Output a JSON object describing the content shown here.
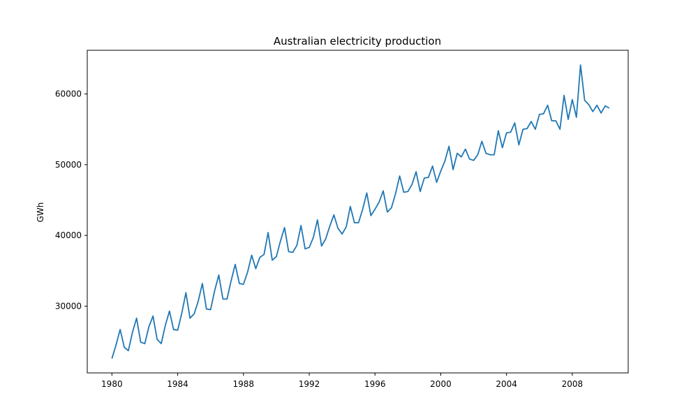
{
  "chart_data": {
    "type": "line",
    "title": "Australian electricity production",
    "xlabel": "",
    "ylabel": "GWh",
    "xlim": [
      1978.5,
      2011.4
    ],
    "ylim": [
      20560,
      66170
    ],
    "x_ticks": [
      1980,
      1984,
      1988,
      1992,
      1996,
      2000,
      2004,
      2008
    ],
    "y_ticks": [
      30000,
      40000,
      50000,
      60000
    ],
    "grid": false,
    "legend": "none",
    "colors": {
      "line": "#1f77b4"
    },
    "x_start": 1980.0,
    "x_step": 0.25,
    "series": [
      {
        "values": [
          22600,
          24500,
          26700,
          24200,
          23700,
          26300,
          28300,
          24900,
          24700,
          27100,
          28600,
          25300,
          24700,
          27300,
          29300,
          26700,
          26600,
          29000,
          31900,
          28300,
          28900,
          30700,
          33200,
          29600,
          29500,
          32200,
          34400,
          31000,
          31000,
          33600,
          35900,
          33200,
          33100,
          34800,
          37200,
          35300,
          36900,
          37300,
          40400,
          36500,
          37000,
          39200,
          41100,
          37700,
          37600,
          38600,
          41400,
          38100,
          38300,
          39700,
          42200,
          38500,
          39500,
          41300,
          42900,
          41000,
          40200,
          41200,
          44100,
          41800,
          41800,
          43700,
          46000,
          42800,
          43700,
          44700,
          46300,
          43300,
          43900,
          45900,
          48400,
          46100,
          46200,
          47200,
          49000,
          46200,
          48100,
          48200,
          49800,
          47500,
          49100,
          50500,
          52600,
          49300,
          51600,
          51100,
          52200,
          50800,
          50600,
          51400,
          53300,
          51600,
          51400,
          51400,
          54800,
          52400,
          54500,
          54600,
          55900,
          52800,
          55000,
          55100,
          56100,
          55000,
          57100,
          57200,
          58400,
          56200,
          56200,
          55000,
          59800,
          56400,
          59200,
          56700,
          64100,
          59100,
          58500,
          57500,
          58400,
          57300,
          58300,
          58000
        ]
      }
    ]
  }
}
